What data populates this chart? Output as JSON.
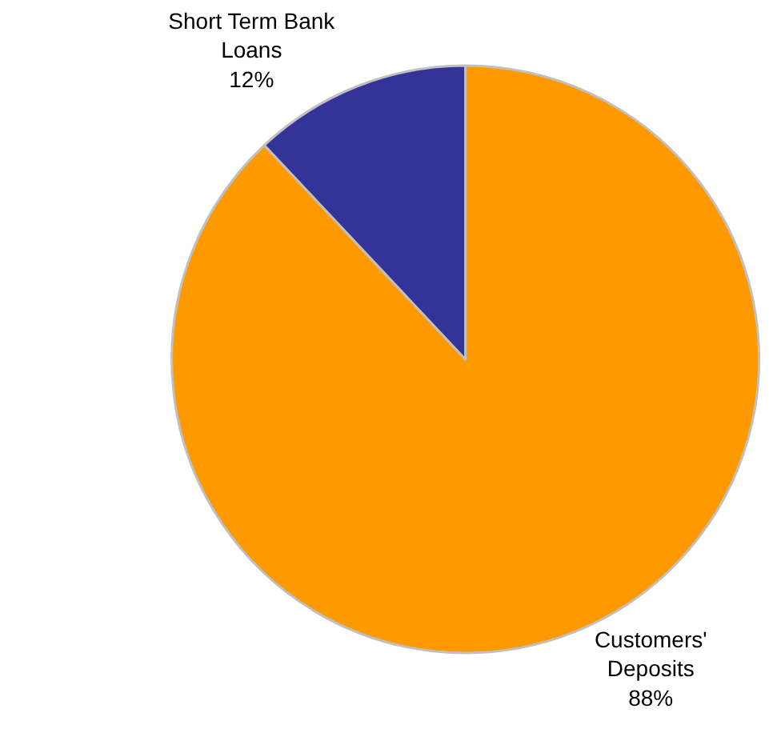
{
  "chart_data": {
    "type": "pie",
    "categories": [
      "Customers' Deposits",
      "Short Term Bank Loans"
    ],
    "values": [
      88,
      12
    ],
    "colors": [
      "#ff9900",
      "#333399"
    ],
    "value_labels": [
      "88%",
      "12%"
    ],
    "legend": false
  }
}
